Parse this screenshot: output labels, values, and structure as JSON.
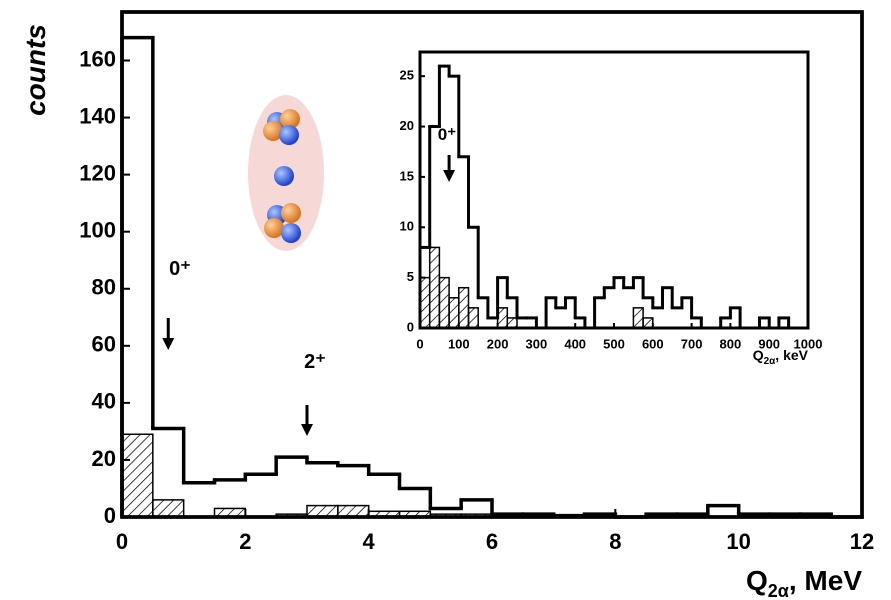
{
  "chart_data": [
    {
      "type": "histogram",
      "y_label": "counts",
      "x_label": {
        "main": "Q",
        "sub": "2α",
        "rest": ", MeV"
      },
      "bins": [
        0,
        0.5,
        1,
        1.5,
        2,
        2.5,
        3,
        3.5,
        4,
        4.5,
        5,
        5.5,
        6,
        6.5,
        7,
        7.5,
        8,
        8.5,
        9,
        9.5,
        10,
        10.5,
        11,
        11.5,
        12
      ],
      "series": [
        {
          "color": "#000000",
          "hatch": false,
          "values": [
            168,
            31,
            12,
            13,
            15,
            21,
            19,
            18,
            15,
            10,
            3,
            6,
            1,
            1,
            0.5,
            1,
            0,
            1,
            1,
            4,
            1,
            1,
            1,
            0
          ]
        },
        {
          "color": "#000000",
          "hatch": true,
          "values": [
            29,
            6,
            0,
            3,
            0,
            1,
            4,
            4,
            2,
            2,
            1,
            1,
            0,
            0,
            0,
            0,
            0,
            0,
            0,
            0,
            0,
            0,
            0,
            0
          ]
        }
      ],
      "xlim": [
        0,
        12
      ],
      "ylim": [
        0,
        177
      ],
      "xticks": [
        0,
        2,
        4,
        6,
        8,
        10,
        12
      ],
      "yticks": [
        0,
        20,
        40,
        60,
        80,
        100,
        120,
        140,
        160
      ],
      "annotations": [
        "0⁺",
        "2⁺"
      ]
    },
    {
      "type": "histogram",
      "x_label": {
        "main": "Q",
        "sub": "2α",
        "rest": ", keV"
      },
      "bins": [
        0,
        25,
        50,
        75,
        100,
        125,
        150,
        175,
        200,
        225,
        250,
        275,
        300,
        325,
        350,
        375,
        400,
        425,
        450,
        475,
        500,
        525,
        550,
        575,
        600,
        625,
        650,
        675,
        700,
        725,
        750,
        775,
        800,
        825,
        850,
        875,
        900,
        925,
        950,
        975,
        1000
      ],
      "series": [
        {
          "color": "#000000",
          "hatch": false,
          "values": [
            8,
            20,
            26,
            25,
            17,
            10,
            3,
            1,
            5,
            3,
            1,
            1,
            0,
            3,
            2,
            3,
            1,
            0,
            3,
            4,
            5,
            4,
            5,
            3,
            2,
            4,
            2,
            3,
            1,
            0,
            0,
            1,
            2,
            0,
            0,
            1,
            0,
            1,
            0,
            0
          ]
        },
        {
          "color": "#000000",
          "hatch": true,
          "values": [
            5,
            8,
            5,
            3,
            4,
            2,
            0,
            0,
            2,
            1,
            0,
            0,
            0,
            0,
            0,
            0,
            0,
            0,
            0,
            0,
            0,
            0,
            2,
            1,
            0,
            0,
            0,
            0,
            0,
            0,
            0,
            0,
            0,
            0,
            0,
            0,
            0,
            0,
            0,
            0
          ]
        }
      ],
      "xlim": [
        0,
        1000
      ],
      "ylim": [
        0,
        27.4
      ],
      "xticks": [
        0,
        100,
        200,
        300,
        400,
        500,
        600,
        700,
        800,
        900,
        1000
      ],
      "yticks": [
        0,
        5,
        10,
        15,
        20,
        25
      ],
      "annotations": [
        "0⁺"
      ]
    }
  ]
}
